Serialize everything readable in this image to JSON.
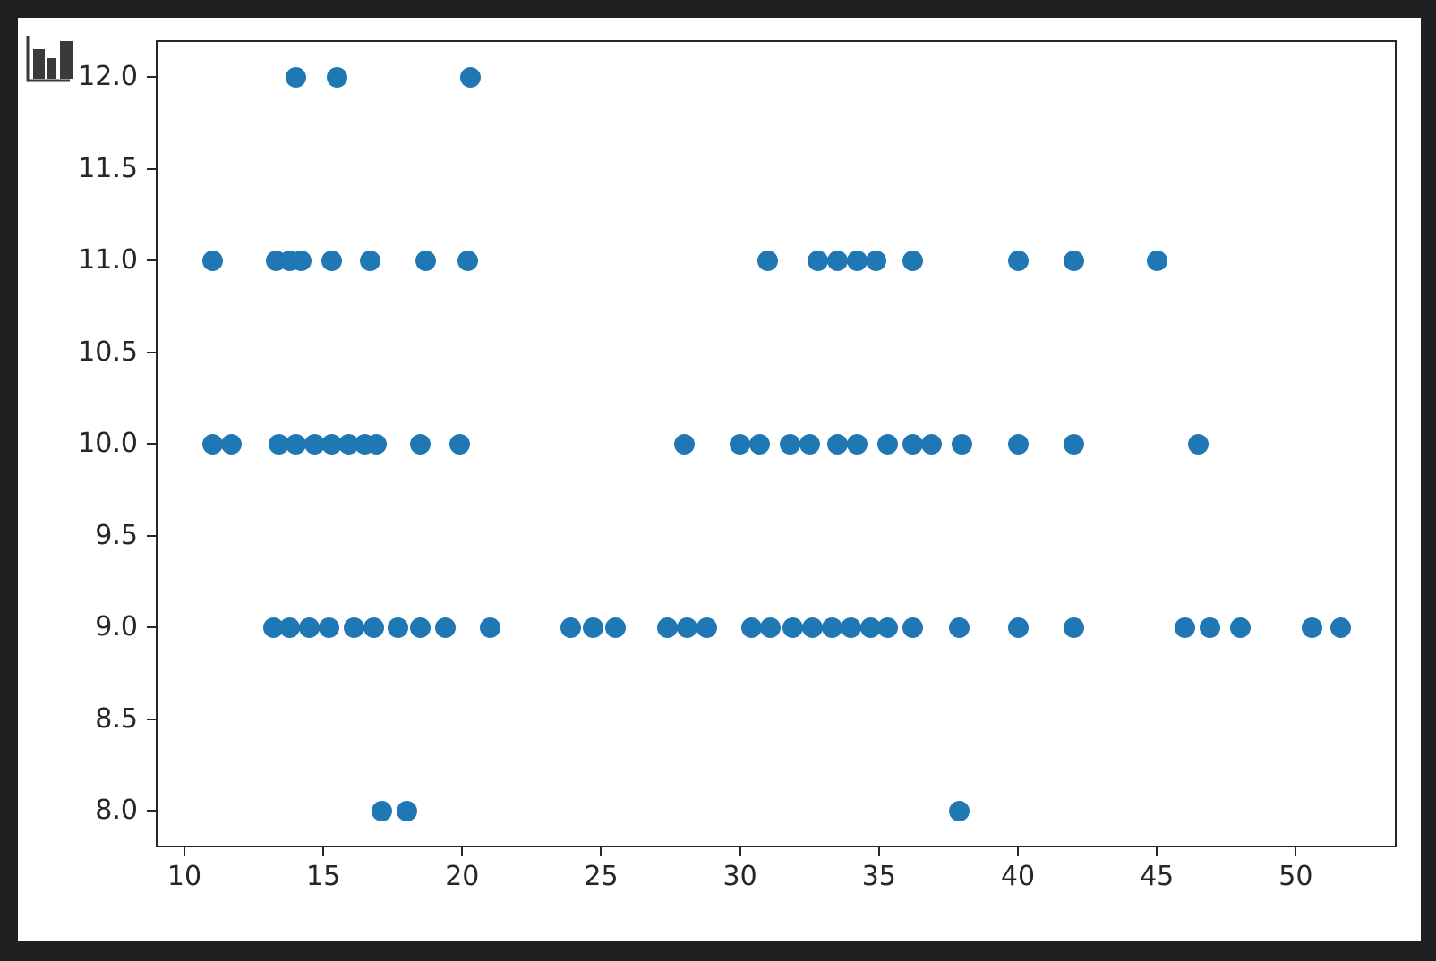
{
  "window": {
    "background_color": "#202020",
    "figure_background": "#ffffff"
  },
  "icon": {
    "name": "bar-chart-icon",
    "color": "#3a3a3a"
  },
  "chart_data": {
    "type": "scatter",
    "title": "",
    "xlabel": "",
    "ylabel": "",
    "grid": false,
    "legend": null,
    "marker_color": "#1f77b4",
    "marker_diameter_px": 23,
    "axis_color": "#262626",
    "xlim": [
      8.97,
      53.63
    ],
    "ylim": [
      7.8,
      12.2
    ],
    "x_ticks": [
      {
        "v": 10,
        "label": "10"
      },
      {
        "v": 15,
        "label": "15"
      },
      {
        "v": 20,
        "label": "20"
      },
      {
        "v": 25,
        "label": "25"
      },
      {
        "v": 30,
        "label": "30"
      },
      {
        "v": 35,
        "label": "35"
      },
      {
        "v": 40,
        "label": "40"
      },
      {
        "v": 45,
        "label": "45"
      },
      {
        "v": 50,
        "label": "50"
      }
    ],
    "y_ticks": [
      {
        "v": 12.0,
        "label": "12.0"
      },
      {
        "v": 11.5,
        "label": "11.5"
      },
      {
        "v": 11.0,
        "label": "11.0"
      },
      {
        "v": 10.5,
        "label": "10.5"
      },
      {
        "v": 10.0,
        "label": "10.0"
      },
      {
        "v": 9.5,
        "label": "9.5"
      },
      {
        "v": 9.0,
        "label": "9.0"
      },
      {
        "v": 8.5,
        "label": "8.5"
      },
      {
        "v": 8.0,
        "label": "8.0"
      }
    ],
    "points": [
      [
        14.0,
        12
      ],
      [
        15.5,
        12
      ],
      [
        20.3,
        12
      ],
      [
        11.0,
        11
      ],
      [
        13.3,
        11
      ],
      [
        13.8,
        11
      ],
      [
        14.2,
        11
      ],
      [
        15.3,
        11
      ],
      [
        16.7,
        11
      ],
      [
        18.7,
        11
      ],
      [
        20.2,
        11
      ],
      [
        31.0,
        11
      ],
      [
        32.8,
        11
      ],
      [
        33.5,
        11
      ],
      [
        34.2,
        11
      ],
      [
        34.9,
        11
      ],
      [
        36.2,
        11
      ],
      [
        40.0,
        11
      ],
      [
        42.0,
        11
      ],
      [
        45.0,
        11
      ],
      [
        11.0,
        10
      ],
      [
        11.7,
        10
      ],
      [
        13.4,
        10
      ],
      [
        14.0,
        10
      ],
      [
        14.7,
        10
      ],
      [
        15.3,
        10
      ],
      [
        15.9,
        10
      ],
      [
        16.5,
        10
      ],
      [
        16.9,
        10
      ],
      [
        18.5,
        10
      ],
      [
        19.9,
        10
      ],
      [
        28.0,
        10
      ],
      [
        30.0,
        10
      ],
      [
        30.7,
        10
      ],
      [
        31.8,
        10
      ],
      [
        32.5,
        10
      ],
      [
        33.5,
        10
      ],
      [
        34.2,
        10
      ],
      [
        35.3,
        10
      ],
      [
        36.2,
        10
      ],
      [
        36.9,
        10
      ],
      [
        38.0,
        10
      ],
      [
        40.0,
        10
      ],
      [
        42.0,
        10
      ],
      [
        46.5,
        10
      ],
      [
        13.2,
        9
      ],
      [
        13.8,
        9
      ],
      [
        14.5,
        9
      ],
      [
        15.2,
        9
      ],
      [
        16.1,
        9
      ],
      [
        16.8,
        9
      ],
      [
        17.7,
        9
      ],
      [
        18.5,
        9
      ],
      [
        19.4,
        9
      ],
      [
        21.0,
        9
      ],
      [
        23.9,
        9
      ],
      [
        24.7,
        9
      ],
      [
        25.5,
        9
      ],
      [
        27.4,
        9
      ],
      [
        28.1,
        9
      ],
      [
        28.8,
        9
      ],
      [
        30.4,
        9
      ],
      [
        31.1,
        9
      ],
      [
        31.9,
        9
      ],
      [
        32.6,
        9
      ],
      [
        33.3,
        9
      ],
      [
        34.0,
        9
      ],
      [
        34.7,
        9
      ],
      [
        35.3,
        9
      ],
      [
        36.2,
        9
      ],
      [
        37.9,
        9
      ],
      [
        40.0,
        9
      ],
      [
        42.0,
        9
      ],
      [
        46.0,
        9
      ],
      [
        46.9,
        9
      ],
      [
        48.0,
        9
      ],
      [
        50.6,
        9
      ],
      [
        51.6,
        9
      ],
      [
        17.1,
        8
      ],
      [
        18.0,
        8
      ],
      [
        37.9,
        8
      ]
    ]
  }
}
